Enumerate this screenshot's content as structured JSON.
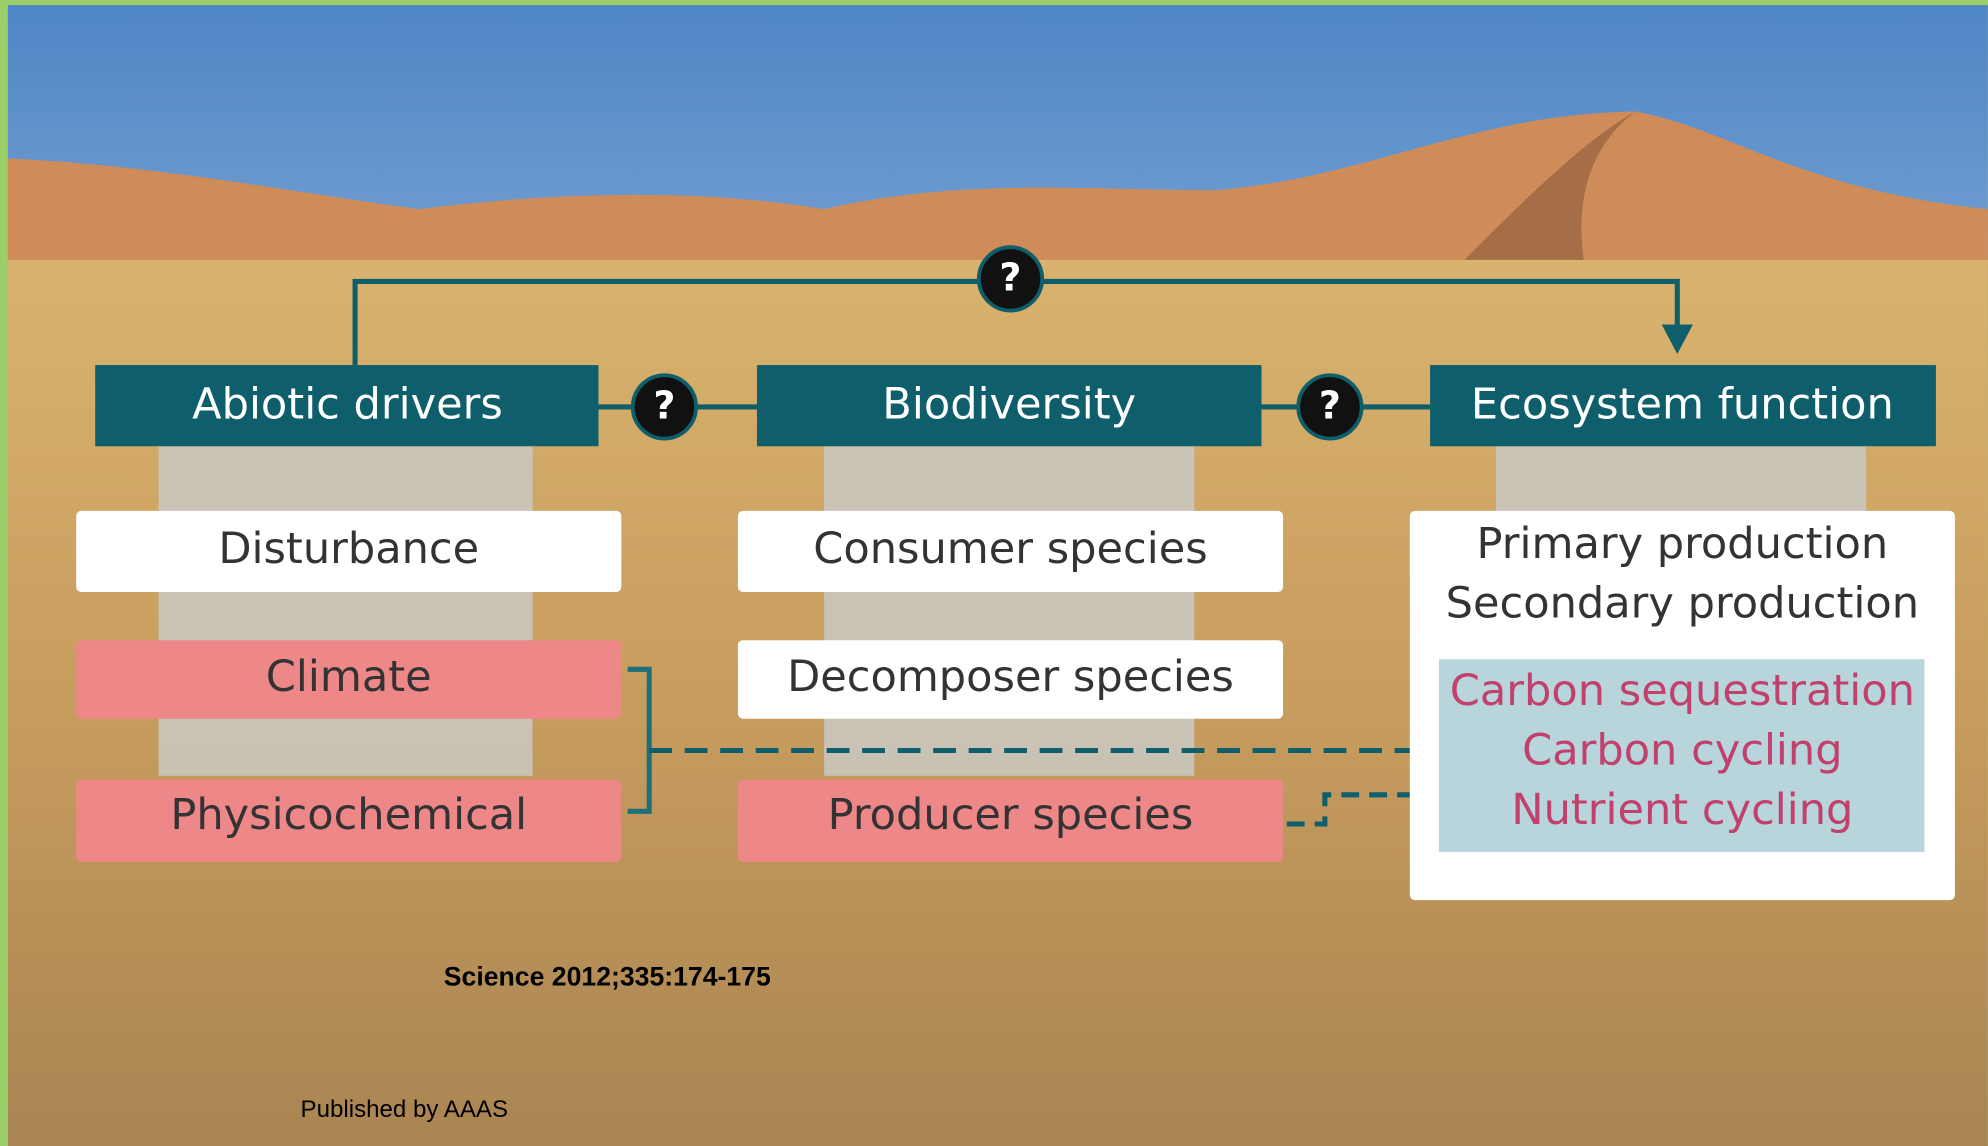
{
  "columns": [
    {
      "title": "Abiotic drivers",
      "items": [
        "Disturbance",
        "Climate",
        "Physicochemical"
      ]
    },
    {
      "title": "Biodiversity",
      "items": [
        "Consumer species",
        "Decomposer species",
        "Producer species"
      ]
    },
    {
      "title": "Ecosystem function",
      "items": [
        "Primary production",
        "Secondary production"
      ],
      "highlighted": [
        "Carbon sequestration",
        "Carbon cycling",
        "Nutrient cycling"
      ]
    }
  ],
  "links": [
    "?",
    "?",
    "?"
  ],
  "citation": "Science 2012;335:174-175",
  "publisher": "Published by AAAS"
}
